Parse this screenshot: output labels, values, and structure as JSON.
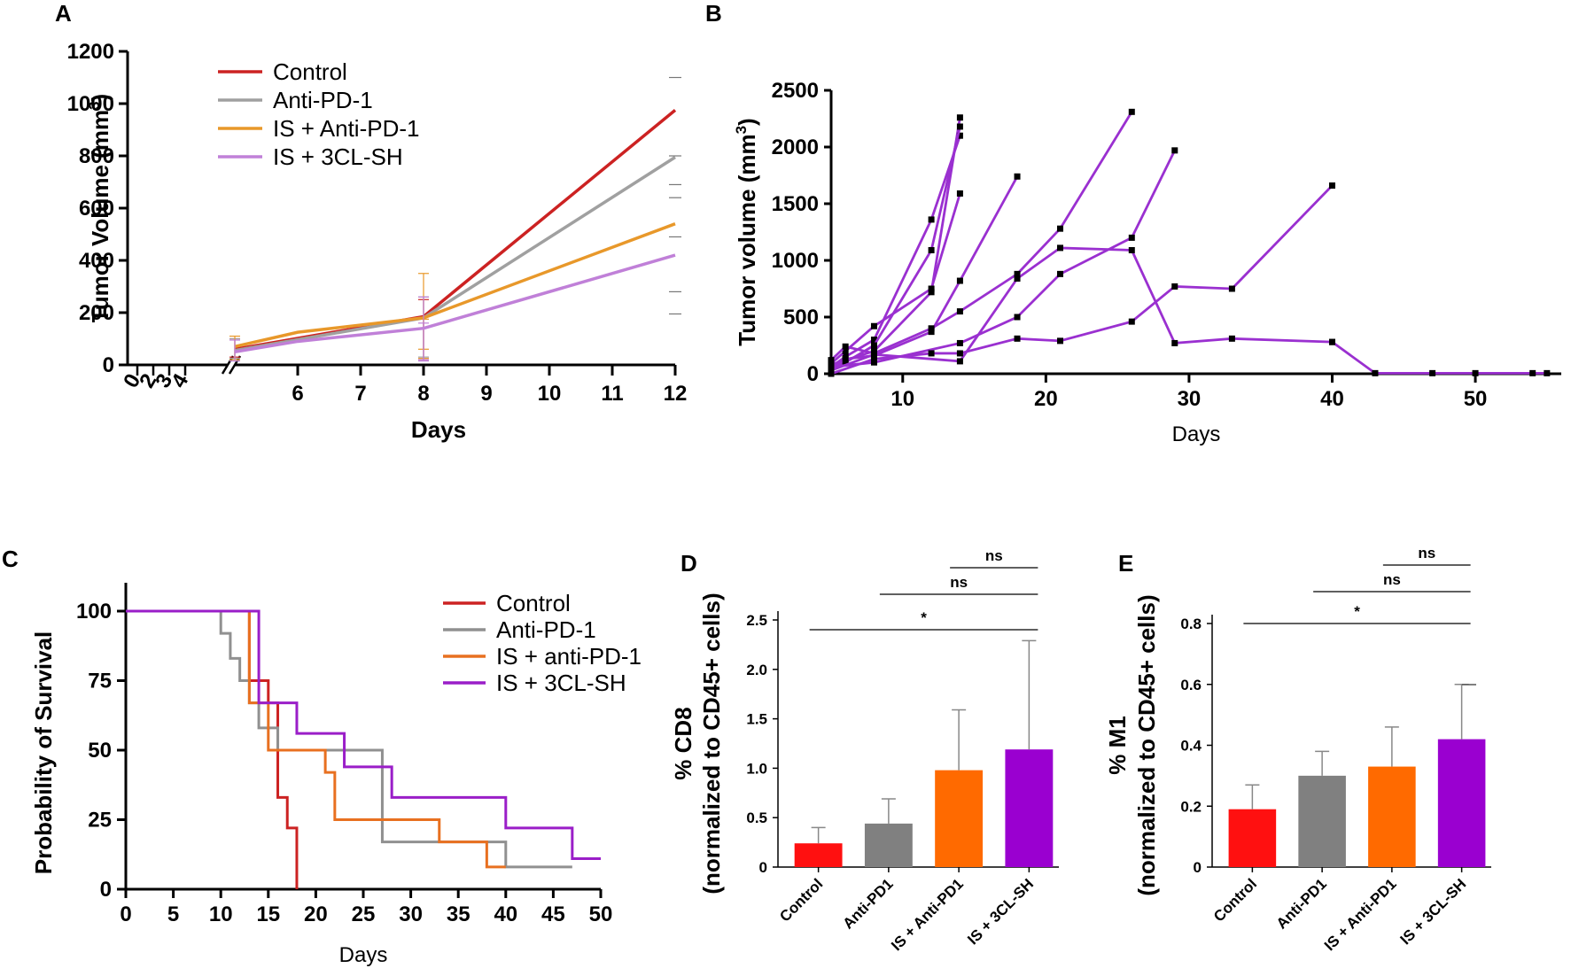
{
  "chart_data": [
    {
      "panel": "A",
      "type": "line",
      "xlabel": "Days",
      "ylabel_pre": "Tumor Volume (mm",
      "ylabel_sup": "3",
      "ylabel_post": ")",
      "ylim": [
        0,
        1200
      ],
      "yticks": [
        "0",
        "200",
        "400",
        "600",
        "800",
        "1000",
        "1200"
      ],
      "xticks_left": [
        "0",
        "2",
        "3",
        "4"
      ],
      "xticks": [
        "6",
        "7",
        "8",
        "9",
        "10",
        "11",
        "12"
      ],
      "series": [
        {
          "name": "Control",
          "color": "#cc2222",
          "x": [
            5,
            8,
            12
          ],
          "y": [
            60,
            185,
            975
          ],
          "err": [
            [
              30,
              100
            ],
            [
              20,
              250
            ]
          ]
        },
        {
          "name": "Anti-PD-1",
          "color": "#a0a0a0",
          "x": [
            5,
            8,
            12
          ],
          "y": [
            55,
            180,
            795
          ],
          "err": [
            [
              25,
              100
            ],
            [
              30,
              260
            ]
          ]
        },
        {
          "name": "IS + Anti-PD-1",
          "color": "#e8982a",
          "x": [
            5,
            6,
            8,
            12
          ],
          "y": [
            70,
            125,
            180,
            540
          ],
          "err": [
            [
              20,
              110
            ],
            [
              60,
              175
            ],
            [
              25,
              350
            ]
          ]
        },
        {
          "name": "IS + 3CL-SH",
          "color": "#c080d8",
          "x": [
            5,
            6,
            8,
            12
          ],
          "y": [
            50,
            90,
            140,
            420
          ],
          "err": [
            [
              15,
              95
            ],
            [
              20,
              160
            ],
            [
              15,
              260
            ]
          ]
        }
      ]
    },
    {
      "panel": "B",
      "type": "line",
      "xlabel": "Days",
      "ylabel_pre": "Tumor volume (mm",
      "ylabel_sup": "3",
      "ylabel_post": ")",
      "xlim": [
        5,
        55
      ],
      "ylim": [
        0,
        2500
      ],
      "xticks": [
        "10",
        "20",
        "30",
        "40",
        "50"
      ],
      "yticks": [
        "0",
        "500",
        "1000",
        "1500",
        "2000",
        "2500"
      ],
      "color": "#9a30d0",
      "series": [
        {
          "x": [
            5,
            6,
            8,
            12,
            14
          ],
          "y": [
            80,
            120,
            200,
            720,
            2260
          ]
        },
        {
          "x": [
            5,
            6,
            8,
            12,
            14
          ],
          "y": [
            60,
            150,
            300,
            1360,
            2100
          ]
        },
        {
          "x": [
            5,
            6,
            8,
            12,
            14
          ],
          "y": [
            40,
            100,
            250,
            1090,
            2180
          ]
        },
        {
          "x": [
            5,
            6,
            8,
            12,
            14
          ],
          "y": [
            90,
            200,
            420,
            750,
            1590
          ]
        },
        {
          "x": [
            5,
            6,
            8,
            12,
            14,
            18
          ],
          "y": [
            50,
            130,
            160,
            370,
            820,
            1740
          ]
        },
        {
          "x": [
            5,
            6,
            8,
            12,
            14,
            18,
            21,
            26
          ],
          "y": [
            120,
            240,
            180,
            400,
            550,
            880,
            1280,
            2310
          ]
        },
        {
          "x": [
            5,
            8,
            14,
            18,
            21,
            26,
            29
          ],
          "y": [
            60,
            100,
            270,
            500,
            880,
            1200,
            1970
          ]
        },
        {
          "x": [
            5,
            8,
            14,
            18,
            21,
            26,
            29,
            33,
            40
          ],
          "y": [
            30,
            170,
            110,
            840,
            1110,
            1090,
            270,
            310,
            280
          ]
        },
        {
          "x": [
            5,
            8,
            12,
            14,
            18,
            21,
            26,
            29,
            33,
            40
          ],
          "y": [
            0,
            130,
            180,
            180,
            310,
            290,
            460,
            770,
            750,
            1660
          ]
        },
        {
          "x": [
            40,
            43,
            47,
            50,
            54,
            55
          ],
          "y": [
            280,
            5,
            5,
            5,
            5,
            5
          ]
        }
      ]
    },
    {
      "panel": "C",
      "type": "line",
      "xlabel": "Days",
      "ylabel": "Probability of Survival",
      "xlim": [
        0,
        50
      ],
      "ylim": [
        0,
        100
      ],
      "xticks": [
        "0",
        "5",
        "10",
        "15",
        "20",
        "25",
        "30",
        "35",
        "40",
        "45",
        "50"
      ],
      "yticks": [
        "0",
        "25",
        "50",
        "75",
        "100"
      ],
      "series": [
        {
          "name": "Control",
          "color": "#cc2222",
          "x": [
            0,
            12,
            13,
            15,
            16,
            17,
            18,
            18
          ],
          "y": [
            100,
            100,
            75,
            67,
            33,
            22,
            0,
            0
          ]
        },
        {
          "name": "Anti-PD-1",
          "color": "#909090",
          "x": [
            0,
            10,
            11,
            12,
            13,
            14,
            15,
            16,
            27,
            40,
            47
          ],
          "y": [
            100,
            92,
            83,
            75,
            67,
            58,
            58,
            50,
            17,
            8,
            8
          ]
        },
        {
          "name": "IS + anti-PD-1",
          "color": "#e87020",
          "x": [
            0,
            12,
            13,
            15,
            16,
            21,
            22,
            33,
            38,
            40
          ],
          "y": [
            100,
            100,
            67,
            50,
            50,
            42,
            25,
            17,
            8,
            8
          ]
        },
        {
          "name": "IS + 3CL-SH",
          "color": "#9a1ec8",
          "x": [
            0,
            13,
            14,
            18,
            23,
            25,
            28,
            40,
            47,
            50
          ],
          "y": [
            100,
            100,
            67,
            56,
            44,
            44,
            33,
            22,
            11,
            11
          ]
        }
      ]
    },
    {
      "panel": "D",
      "type": "bar",
      "ylabel": "% CD8",
      "ylabel2": "(normalized to CD45+ cells)",
      "ylim": [
        0,
        2.6
      ],
      "yticks": [
        "0",
        "0.5",
        "1.0",
        "1.5",
        "2.0",
        "2.5"
      ],
      "categories": [
        "Control",
        "Anti-PD1",
        "IS + Anti-PD1",
        "IS + 3CL-SH"
      ],
      "values": [
        0.24,
        0.44,
        0.98,
        1.19
      ],
      "errors": [
        0.16,
        0.25,
        0.61,
        1.1
      ],
      "colors": [
        "#ff1010",
        "#808080",
        "#ff6a00",
        "#9a00d0"
      ],
      "significance": [
        {
          "label": "*",
          "from": 0,
          "to": 3,
          "level": 2.4
        },
        {
          "label": "ns",
          "from": 1,
          "to": 3,
          "level": 2.7
        },
        {
          "label": "ns",
          "from": 2,
          "to": 3,
          "level": 3.0
        }
      ]
    },
    {
      "panel": "E",
      "type": "bar",
      "ylabel": "% M1",
      "ylabel2": "(normalized to CD45+ cells)",
      "ylim": [
        0,
        0.85
      ],
      "yticks": [
        "0",
        "0.2",
        "0.4",
        "0.6",
        "0.8"
      ],
      "categories": [
        "Control",
        "Anti-PD1",
        "IS + Anti-PD1",
        "IS + 3CL-SH"
      ],
      "values": [
        0.19,
        0.3,
        0.33,
        0.42
      ],
      "errors": [
        0.08,
        0.08,
        0.13,
        0.18
      ],
      "colors": [
        "#ff1010",
        "#808080",
        "#ff6a00",
        "#9a00d0"
      ],
      "significance": [
        {
          "label": "*",
          "from": 0,
          "to": 3,
          "level": 0.8
        },
        {
          "label": "ns",
          "from": 1,
          "to": 3,
          "level": 0.9
        },
        {
          "label": "ns",
          "from": 2,
          "to": 3,
          "level": 1.0
        }
      ]
    }
  ]
}
